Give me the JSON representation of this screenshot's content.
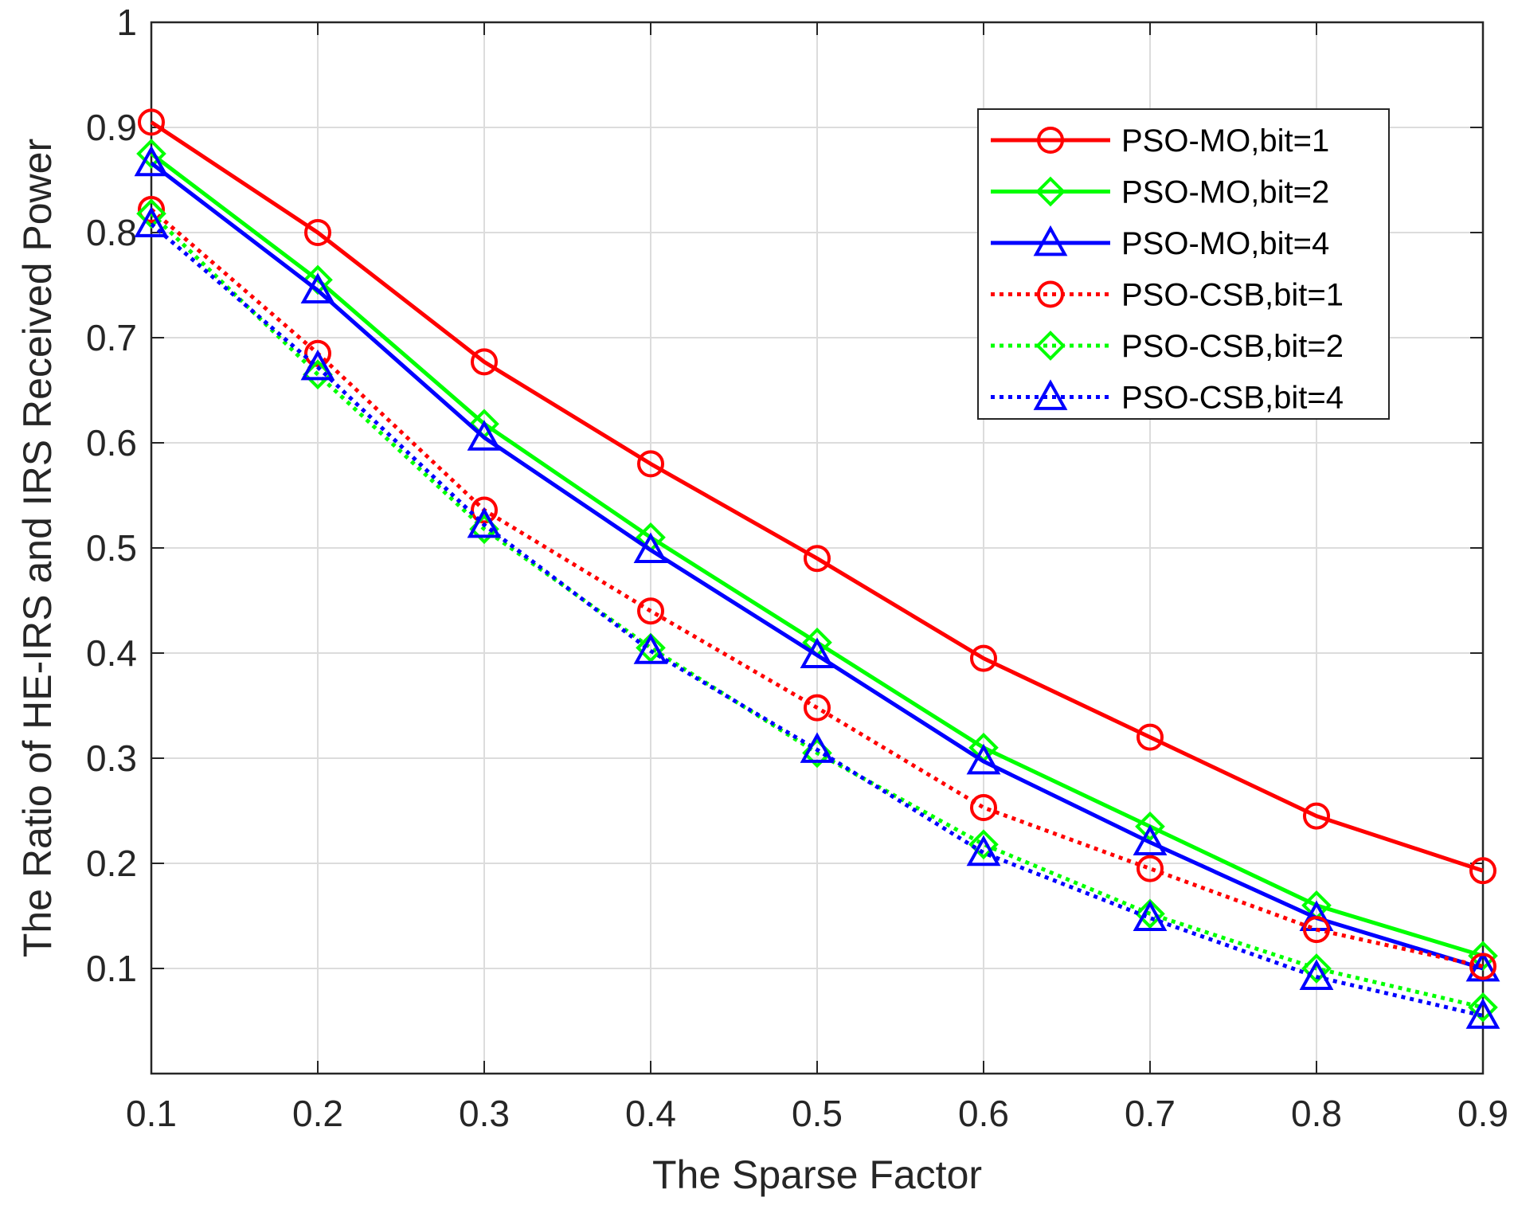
{
  "chart_data": {
    "type": "line",
    "title": "",
    "xlabel": "The Sparse Factor",
    "ylabel": "The Ratio of HE-IRS and IRS Received Power",
    "xlim": [
      0.1,
      0.9
    ],
    "ylim": [
      0,
      1
    ],
    "grid": true,
    "legend_position": "top-right",
    "x": [
      0.1,
      0.2,
      0.3,
      0.4,
      0.5,
      0.6,
      0.7,
      0.8,
      0.9
    ],
    "x_ticks": [
      "0.1",
      "0.2",
      "0.3",
      "0.4",
      "0.5",
      "0.6",
      "0.7",
      "0.8",
      "0.9"
    ],
    "y_ticks_values": [
      0.1,
      0.2,
      0.3,
      0.4,
      0.5,
      0.6,
      0.7,
      0.8,
      0.9,
      1
    ],
    "y_ticks": [
      "0.1",
      "0.2",
      "0.3",
      "0.4",
      "0.5",
      "0.6",
      "0.7",
      "0.8",
      "0.9",
      "1"
    ],
    "series": [
      {
        "name": "PSO-MO,bit=1",
        "color": "#ff0000",
        "marker": "circle",
        "dash": "solid",
        "values": [
          0.905,
          0.8,
          0.677,
          0.58,
          0.49,
          0.395,
          0.32,
          0.245,
          0.193
        ]
      },
      {
        "name": "PSO-MO,bit=2",
        "color": "#00ff00",
        "marker": "diamond",
        "dash": "solid",
        "values": [
          0.875,
          0.755,
          0.618,
          0.51,
          0.41,
          0.31,
          0.235,
          0.16,
          0.112
        ]
      },
      {
        "name": "PSO-MO,bit=4",
        "color": "#0000ff",
        "marker": "triangle",
        "dash": "solid",
        "values": [
          0.866,
          0.745,
          0.605,
          0.498,
          0.398,
          0.297,
          0.22,
          0.148,
          0.1
        ]
      },
      {
        "name": "PSO-CSB,bit=1",
        "color": "#ff0000",
        "marker": "circle",
        "dash": "dotted",
        "values": [
          0.822,
          0.685,
          0.536,
          0.44,
          0.348,
          0.253,
          0.195,
          0.137,
          0.102
        ]
      },
      {
        "name": "PSO-CSB,bit=2",
        "color": "#00ff00",
        "marker": "diamond",
        "dash": "dotted",
        "values": [
          0.818,
          0.665,
          0.518,
          0.405,
          0.305,
          0.218,
          0.152,
          0.1,
          0.063
        ]
      },
      {
        "name": "PSO-CSB,bit=4",
        "color": "#0000ff",
        "marker": "triangle",
        "dash": "dotted",
        "values": [
          0.808,
          0.672,
          0.522,
          0.402,
          0.308,
          0.21,
          0.148,
          0.092,
          0.055
        ]
      }
    ]
  }
}
